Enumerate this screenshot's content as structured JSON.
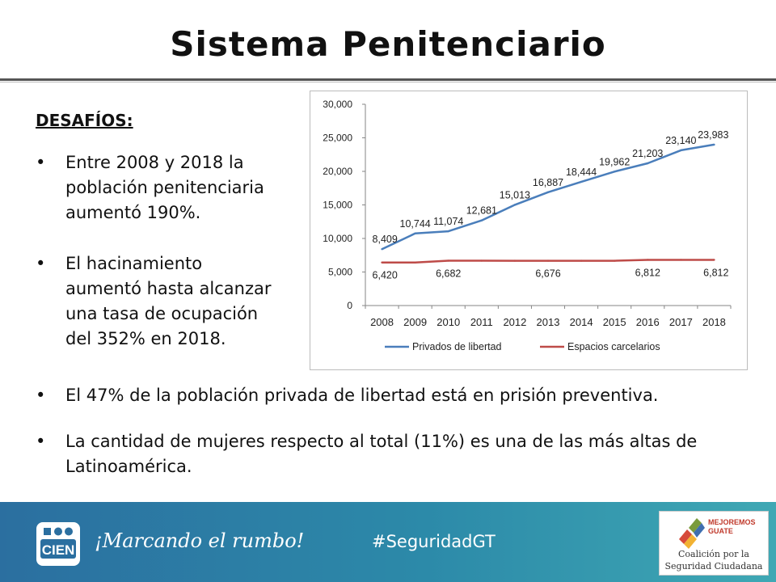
{
  "slide": {
    "title": "Sistema Penitenciario",
    "subheading": "DESAFÍOS:",
    "bullets": [
      {
        "dot": "•",
        "lines": [
          "Entre 2008 y 2018 la",
          "población penitenciaria",
          "aumentó 190%."
        ]
      },
      {
        "dot": "•",
        "lines": [
          "El hacinamiento",
          "aumentó hasta alcanzar",
          "una tasa de ocupación",
          "del 352% en 2018."
        ]
      },
      {
        "dot": "•",
        "lines": [
          "El 47% de la población privada de libertad  está en prisión preventiva."
        ]
      },
      {
        "dot": "•",
        "lines": [
          "La cantidad de mujeres respecto al total (11%) es una de las más altas de",
          "Latinoamérica."
        ]
      }
    ]
  },
  "footer": {
    "logo_text": "CIEN",
    "slogan": "¡Marcando el rumbo!",
    "hashtag": "#SeguridadGT",
    "partner_top": "MEJOREMOS",
    "partner_top2": "GUATE",
    "partner_bottom1": "Coalición por la",
    "partner_bottom2": "Seguridad Ciudadana"
  },
  "colors": {
    "series1": "#4a7ebb",
    "series2": "#be4b48",
    "footer_blue": "#2b7ca6"
  },
  "chart_data": {
    "type": "line",
    "categories": [
      "2008",
      "2009",
      "2010",
      "2011",
      "2012",
      "2013",
      "2014",
      "2015",
      "2016",
      "2017",
      "2018"
    ],
    "ylim": [
      0,
      30000
    ],
    "yticks": [
      "0",
      "5,000",
      "10,000",
      "15,000",
      "20,000",
      "25,000",
      "30,000"
    ],
    "ytick_values": [
      0,
      5000,
      10000,
      15000,
      20000,
      25000,
      30000
    ],
    "legend_position": "bottom",
    "series": [
      {
        "name": "Privados de libertad",
        "color": "#4a7ebb",
        "values": [
          8409,
          10744,
          11074,
          12681,
          15013,
          16887,
          18444,
          19962,
          21203,
          23140,
          23983
        ],
        "labels": [
          "8,409",
          "10,744",
          "11,074",
          "12,681",
          "15,013",
          "16,887",
          "18,444",
          "19,962",
          "21,203",
          "23,140",
          "23,983"
        ],
        "label_indices": [
          0,
          1,
          2,
          3,
          4,
          5,
          6,
          7,
          8,
          9,
          10
        ]
      },
      {
        "name": "Espacios carcelarios",
        "color": "#be4b48",
        "values": [
          6420,
          6420,
          6682,
          6682,
          6676,
          6676,
          6676,
          6676,
          6812,
          6812,
          6812
        ],
        "labels": [
          "6,420",
          "6,682",
          "6,676",
          "6,812",
          "6,812"
        ],
        "label_indices": [
          0,
          2,
          5,
          8,
          10
        ]
      }
    ]
  }
}
